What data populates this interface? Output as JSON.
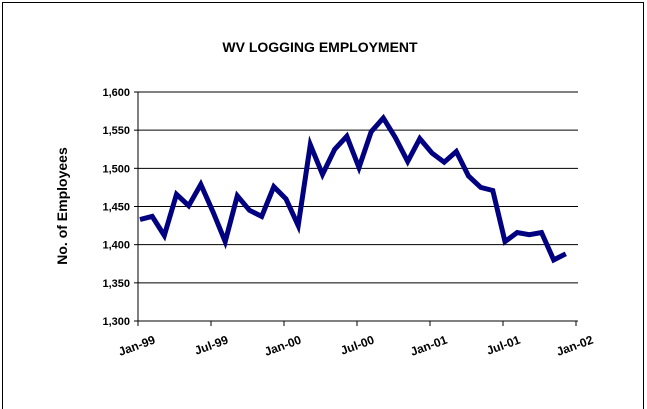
{
  "chart_data": {
    "type": "line",
    "title": "WV LOGGING EMPLOYMENT",
    "y_label": "No. of Employees",
    "categories": [
      "Jan-99",
      null,
      null,
      null,
      null,
      null,
      "Jul-99",
      null,
      null,
      null,
      null,
      null,
      "Jan-00",
      null,
      null,
      null,
      null,
      null,
      "Jul-00",
      null,
      null,
      null,
      null,
      null,
      "Jan-01",
      null,
      null,
      null,
      null,
      null,
      "Jul-01",
      null,
      null,
      null,
      null,
      null,
      "Jan-02"
    ],
    "values": [
      1433,
      1437,
      1412,
      1466,
      1451,
      1479,
      1443,
      1404,
      1464,
      1445,
      1437,
      1476,
      1460,
      1425,
      1531,
      1492,
      1525,
      1542,
      1501,
      1548,
      1566,
      1540,
      1509,
      1539,
      1520,
      1508,
      1522,
      1490,
      1475,
      1471,
      1404,
      1416,
      1413,
      1416,
      1380,
      1388,
      null
    ],
    "color": "#000080",
    "ylim": [
      1300,
      1600
    ],
    "yticks": [
      {
        "value": 1300,
        "label": "1,300"
      },
      {
        "value": 1350,
        "label": "1,350"
      },
      {
        "value": 1400,
        "label": "1,400"
      },
      {
        "value": 1450,
        "label": "1,450"
      },
      {
        "value": 1500,
        "label": "1,500"
      },
      {
        "value": 1550,
        "label": "1,550"
      },
      {
        "value": 1600,
        "label": "1,600"
      }
    ],
    "grid": true
  }
}
